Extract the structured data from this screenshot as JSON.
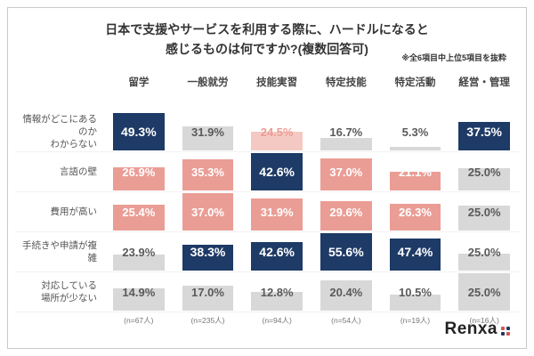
{
  "header": {
    "title_line1": "日本で支援やサービスを利用する際に、ハードルになると",
    "title_line2": "感じるものは何ですか?(複数回答可)",
    "note": "※全6項目中上位5項目を抜粋"
  },
  "logo": {
    "text": "Renxa"
  },
  "chart_data": {
    "type": "table",
    "title": "日本で支援やサービスを利用する際に、ハードルになると感じるものは何ですか?(複数回答可)",
    "note": "※全6項目中上位5項目を抜粋",
    "legend_note": "navy = highest value in column, salmon = 2nd/3rd highest, gray = lower values; bar height proportional to value within row",
    "columns": [
      "留学",
      "一般就労",
      "技能実習",
      "特定技能",
      "特定活動",
      "経営・管理"
    ],
    "sample_sizes": [
      "(n=67人)",
      "(n=235人)",
      "(n=94人)",
      "(n=54人)",
      "(n=19人)",
      "(n=16人)"
    ],
    "colors": {
      "navy": "#1e3a66",
      "salmon": "#ea9d95",
      "salmon_light": "#f5c9c3",
      "gray": "#d8d8d8"
    },
    "rows": [
      {
        "label": "情報がどこにあるのか\nわからない",
        "cells": [
          {
            "value": 49.3,
            "label": "49.3%",
            "style": "navy"
          },
          {
            "value": 31.9,
            "label": "31.9%",
            "style": "gray"
          },
          {
            "value": 24.5,
            "label": "24.5%",
            "style": "salmon_light"
          },
          {
            "value": 16.7,
            "label": "16.7%",
            "style": "gray"
          },
          {
            "value": 5.3,
            "label": "5.3%",
            "style": "gray"
          },
          {
            "value": 37.5,
            "label": "37.5%",
            "style": "navy"
          }
        ]
      },
      {
        "label": "言語の壁",
        "cells": [
          {
            "value": 26.9,
            "label": "26.9%",
            "style": "salmon"
          },
          {
            "value": 35.3,
            "label": "35.3%",
            "style": "salmon"
          },
          {
            "value": 42.6,
            "label": "42.6%",
            "style": "navy"
          },
          {
            "value": 37.0,
            "label": "37.0%",
            "style": "salmon"
          },
          {
            "value": 21.1,
            "label": "21.1%",
            "style": "salmon"
          },
          {
            "value": 25.0,
            "label": "25.0%",
            "style": "gray"
          }
        ]
      },
      {
        "label": "費用が高い",
        "cells": [
          {
            "value": 25.4,
            "label": "25.4%",
            "style": "salmon"
          },
          {
            "value": 37.0,
            "label": "37.0%",
            "style": "salmon"
          },
          {
            "value": 31.9,
            "label": "31.9%",
            "style": "salmon"
          },
          {
            "value": 29.6,
            "label": "29.6%",
            "style": "salmon"
          },
          {
            "value": 26.3,
            "label": "26.3%",
            "style": "salmon"
          },
          {
            "value": 25.0,
            "label": "25.0%",
            "style": "gray"
          }
        ]
      },
      {
        "label": "手続きや申請が複雑",
        "cells": [
          {
            "value": 23.9,
            "label": "23.9%",
            "style": "gray"
          },
          {
            "value": 38.3,
            "label": "38.3%",
            "style": "navy"
          },
          {
            "value": 42.6,
            "label": "42.6%",
            "style": "navy"
          },
          {
            "value": 55.6,
            "label": "55.6%",
            "style": "navy"
          },
          {
            "value": 47.4,
            "label": "47.4%",
            "style": "navy"
          },
          {
            "value": 25.0,
            "label": "25.0%",
            "style": "gray"
          }
        ]
      },
      {
        "label": "対応している\n場所が少ない",
        "cells": [
          {
            "value": 14.9,
            "label": "14.9%",
            "style": "gray"
          },
          {
            "value": 17.0,
            "label": "17.0%",
            "style": "gray"
          },
          {
            "value": 12.8,
            "label": "12.8%",
            "style": "gray"
          },
          {
            "value": 20.4,
            "label": "20.4%",
            "style": "gray"
          },
          {
            "value": 10.5,
            "label": "10.5%",
            "style": "gray"
          },
          {
            "value": 25.0,
            "label": "25.0%",
            "style": "gray"
          }
        ]
      }
    ]
  }
}
